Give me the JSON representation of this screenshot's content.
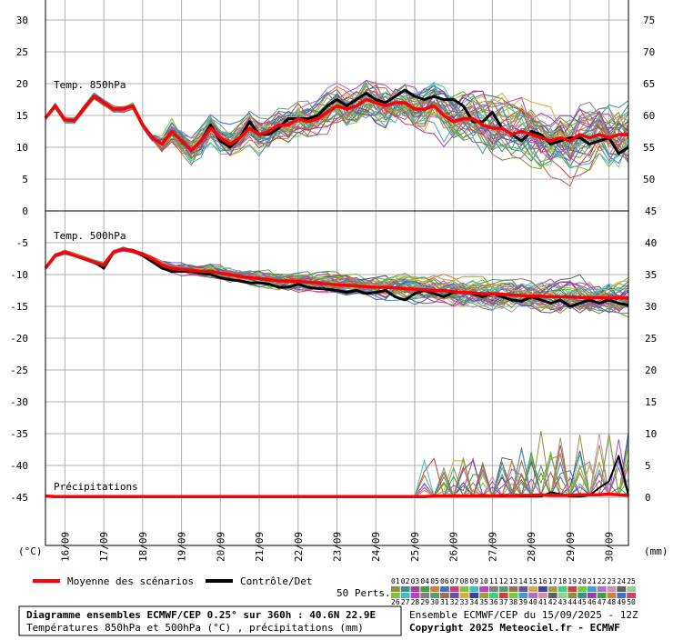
{
  "chart_data": {
    "type": "line",
    "dates": [
      "16/09",
      "17/09",
      "18/09",
      "19/09",
      "20/09",
      "21/09",
      "22/09",
      "23/09",
      "24/09",
      "25/09",
      "26/09",
      "27/09",
      "28/09",
      "29/09",
      "30/09"
    ],
    "left_unit": "(°C)",
    "right_unit": "(mm)",
    "panels": [
      {
        "label": "Temp. 850hPa",
        "left_ticks": [
          "30",
          "25",
          "20",
          "15",
          "10",
          "5",
          "0"
        ],
        "right_ticks": [
          "75",
          "70",
          "65",
          "60",
          "55",
          "50"
        ],
        "ylim": [
          0,
          33
        ],
        "mean": [
          14.6,
          16.5,
          14.3,
          14.2,
          16.2,
          18.0,
          17.0,
          16.0,
          16.0,
          16.5,
          13.5,
          11.5,
          10.5,
          12.5,
          11.0,
          9.5,
          11.0,
          13.0,
          11.5,
          10.5,
          11.5,
          13.0,
          12.0,
          12.5,
          13.5,
          13.5,
          14.5,
          14.0,
          14.5,
          15.5,
          16.5,
          16.0,
          16.5,
          17.5,
          17.0,
          16.5,
          17.0,
          17.0,
          16.0,
          16.0,
          16.5,
          15.0,
          14.0,
          14.5,
          14.5,
          13.5,
          13.0,
          13.0,
          12.0,
          12.5,
          12.0,
          11.5,
          11.0,
          11.5,
          11.0,
          12.0,
          11.5,
          12.0,
          11.5,
          12.0,
          12.0
        ],
        "control": [
          14.6,
          16.5,
          14.3,
          14.2,
          16.2,
          18.0,
          17.0,
          16.0,
          16.0,
          16.5,
          13.5,
          11.5,
          10.5,
          12.5,
          11.0,
          9.5,
          11.0,
          13.5,
          11.0,
          10.0,
          11.5,
          14.0,
          12.0,
          12.0,
          13.0,
          14.5,
          14.5,
          14.5,
          15.0,
          16.5,
          17.5,
          16.5,
          17.5,
          18.5,
          17.5,
          17.0,
          18.0,
          19.0,
          18.0,
          17.5,
          18.0,
          17.5,
          17.5,
          16.5,
          14.0,
          14.0,
          15.5,
          13.0,
          12.0,
          11.0,
          12.5,
          12.0,
          10.5,
          11.0,
          11.5,
          11.5,
          10.5,
          11.0,
          11.5,
          9.0,
          10.0
        ]
      },
      {
        "label": "Temp. 500hPa",
        "left_ticks": [
          "-5",
          "-10",
          "-15",
          "-20",
          "-25",
          "-30",
          "-35",
          "-40",
          "-45"
        ],
        "right_ticks": [
          "40",
          "35",
          "30",
          "25",
          "20",
          "15",
          "10",
          "5",
          "0"
        ],
        "ylim": [
          -50,
          -2
        ],
        "mean": [
          -9.0,
          -7.0,
          -6.5,
          -7.0,
          -7.5,
          -8.0,
          -8.5,
          -6.5,
          -6.0,
          -6.3,
          -6.8,
          -7.5,
          -8.5,
          -9.0,
          -9.2,
          -9.3,
          -9.5,
          -9.5,
          -9.8,
          -10.0,
          -10.3,
          -10.5,
          -10.6,
          -10.8,
          -11.0,
          -11.0,
          -11.1,
          -11.2,
          -11.3,
          -11.5,
          -11.6,
          -11.7,
          -11.8,
          -11.9,
          -12.0,
          -12.0,
          -12.1,
          -12.2,
          -12.3,
          -12.4,
          -12.5,
          -12.5,
          -12.7,
          -12.8,
          -12.9,
          -13.0,
          -13.0,
          -13.1,
          -13.2,
          -13.3,
          -13.4,
          -13.4,
          -13.5,
          -13.5,
          -13.5,
          -13.6,
          -13.6,
          -13.6,
          -13.7,
          -13.7,
          -13.7
        ],
        "control": [
          -9.0,
          -7.0,
          -6.5,
          -7.0,
          -7.5,
          -8.0,
          -9.0,
          -6.5,
          -6.0,
          -6.2,
          -7.0,
          -8.0,
          -9.0,
          -9.5,
          -9.5,
          -9.5,
          -9.8,
          -10.0,
          -10.5,
          -10.8,
          -11.0,
          -11.3,
          -11.3,
          -11.5,
          -12.0,
          -12.0,
          -11.5,
          -12.0,
          -12.2,
          -12.3,
          -12.5,
          -12.8,
          -12.5,
          -13.0,
          -12.8,
          -12.5,
          -13.5,
          -14.0,
          -13.0,
          -12.5,
          -13.0,
          -13.5,
          -12.8,
          -12.8,
          -13.0,
          -13.5,
          -13.0,
          -13.5,
          -14.0,
          -14.2,
          -13.5,
          -14.0,
          -14.5,
          -14.0,
          -15.0,
          -14.5,
          -14.0,
          -14.5,
          -14.0,
          -14.5,
          -14.8
        ]
      },
      {
        "label": "Précipitations",
        "mean": [
          0.2,
          0.1,
          0.1,
          0.1,
          0.1,
          0.1,
          0.1,
          0.1,
          0.1,
          0.1,
          0.1,
          0.1,
          0.1,
          0.1,
          0.1,
          0.1,
          0.1,
          0.1,
          0.1,
          0.1,
          0.1,
          0.1,
          0.1,
          0.1,
          0.1,
          0.1,
          0.1,
          0.1,
          0.1,
          0.1,
          0.1,
          0.1,
          0.1,
          0.1,
          0.1,
          0.1,
          0.1,
          0.1,
          0.1,
          0.1,
          0.2,
          0.2,
          0.2,
          0.2,
          0.2,
          0.3,
          0.2,
          0.3,
          0.2,
          0.3,
          0.3,
          0.4,
          0.3,
          0.3,
          0.3,
          0.4,
          0.4,
          0.4,
          0.5,
          0.4,
          0.3
        ],
        "control": [
          0.2,
          0.1,
          0.1,
          0.1,
          0.1,
          0.1,
          0.1,
          0.1,
          0.1,
          0.1,
          0.1,
          0.1,
          0.1,
          0.1,
          0.1,
          0.1,
          0.1,
          0.1,
          0.1,
          0.1,
          0.1,
          0.1,
          0.1,
          0.1,
          0.1,
          0.1,
          0.1,
          0.1,
          0.1,
          0.1,
          0.1,
          0.1,
          0.1,
          0.1,
          0.1,
          0.1,
          0.1,
          0.1,
          0.1,
          0.1,
          0.1,
          0.1,
          0.1,
          0.1,
          0.1,
          0.1,
          0.1,
          0.1,
          0.1,
          0.1,
          0.1,
          0.1,
          0.8,
          0.5,
          0.1,
          0.1,
          0.3,
          1.5,
          2.5,
          6.5,
          0.3
        ]
      }
    ],
    "legend": {
      "mean_label": "Moyenne des scénarios",
      "control_label": "Contrôle/Det",
      "perts_label": "50 Perts.",
      "row1": [
        "01",
        "02",
        "03",
        "04",
        "05",
        "06",
        "07",
        "08",
        "09",
        "10",
        "11",
        "12",
        "13",
        "14",
        "15",
        "16",
        "17",
        "18",
        "19",
        "20",
        "21",
        "22",
        "23",
        "24",
        "25"
      ],
      "row2": [
        "26",
        "27",
        "28",
        "29",
        "30",
        "31",
        "32",
        "33",
        "34",
        "35",
        "36",
        "37",
        "38",
        "39",
        "40",
        "41",
        "42",
        "43",
        "44",
        "45",
        "46",
        "47",
        "48",
        "49",
        "50"
      ]
    },
    "footer": {
      "title": "Diagramme ensembles ECMWF/CEP 0.25° sur 360h : 40.6N 22.9E",
      "subtitle": "Températures 850hPa et 500hPa (°C) , précipitations (mm)",
      "run": "Ensemble ECMWF/CEP du 15/09/2025 - 12Z",
      "copyright": "Copyright 2025 Meteociel.fr - ECMWF"
    },
    "colors": {
      "mean": "#ff0000",
      "control": "#000000",
      "grid": "#b0b0b0",
      "members": [
        "#8f8f3f",
        "#3f8f8f",
        "#9f3f9f",
        "#3f9f3f",
        "#cf7f3f",
        "#3f6fcf",
        "#cf3f6f",
        "#7fbf3f",
        "#3fbfbf",
        "#bf3fbf",
        "#7f7f7f",
        "#4f9f6f",
        "#9f6f4f",
        "#6f4f9f",
        "#cfaf3f",
        "#3f3f9f",
        "#9f9f3f",
        "#3fcf7f",
        "#cf3f3f",
        "#6fcf3f",
        "#3f9fcf",
        "#af6fcf",
        "#cf8faf",
        "#5f5f5f",
        "#8fcf8f"
      ]
    }
  }
}
